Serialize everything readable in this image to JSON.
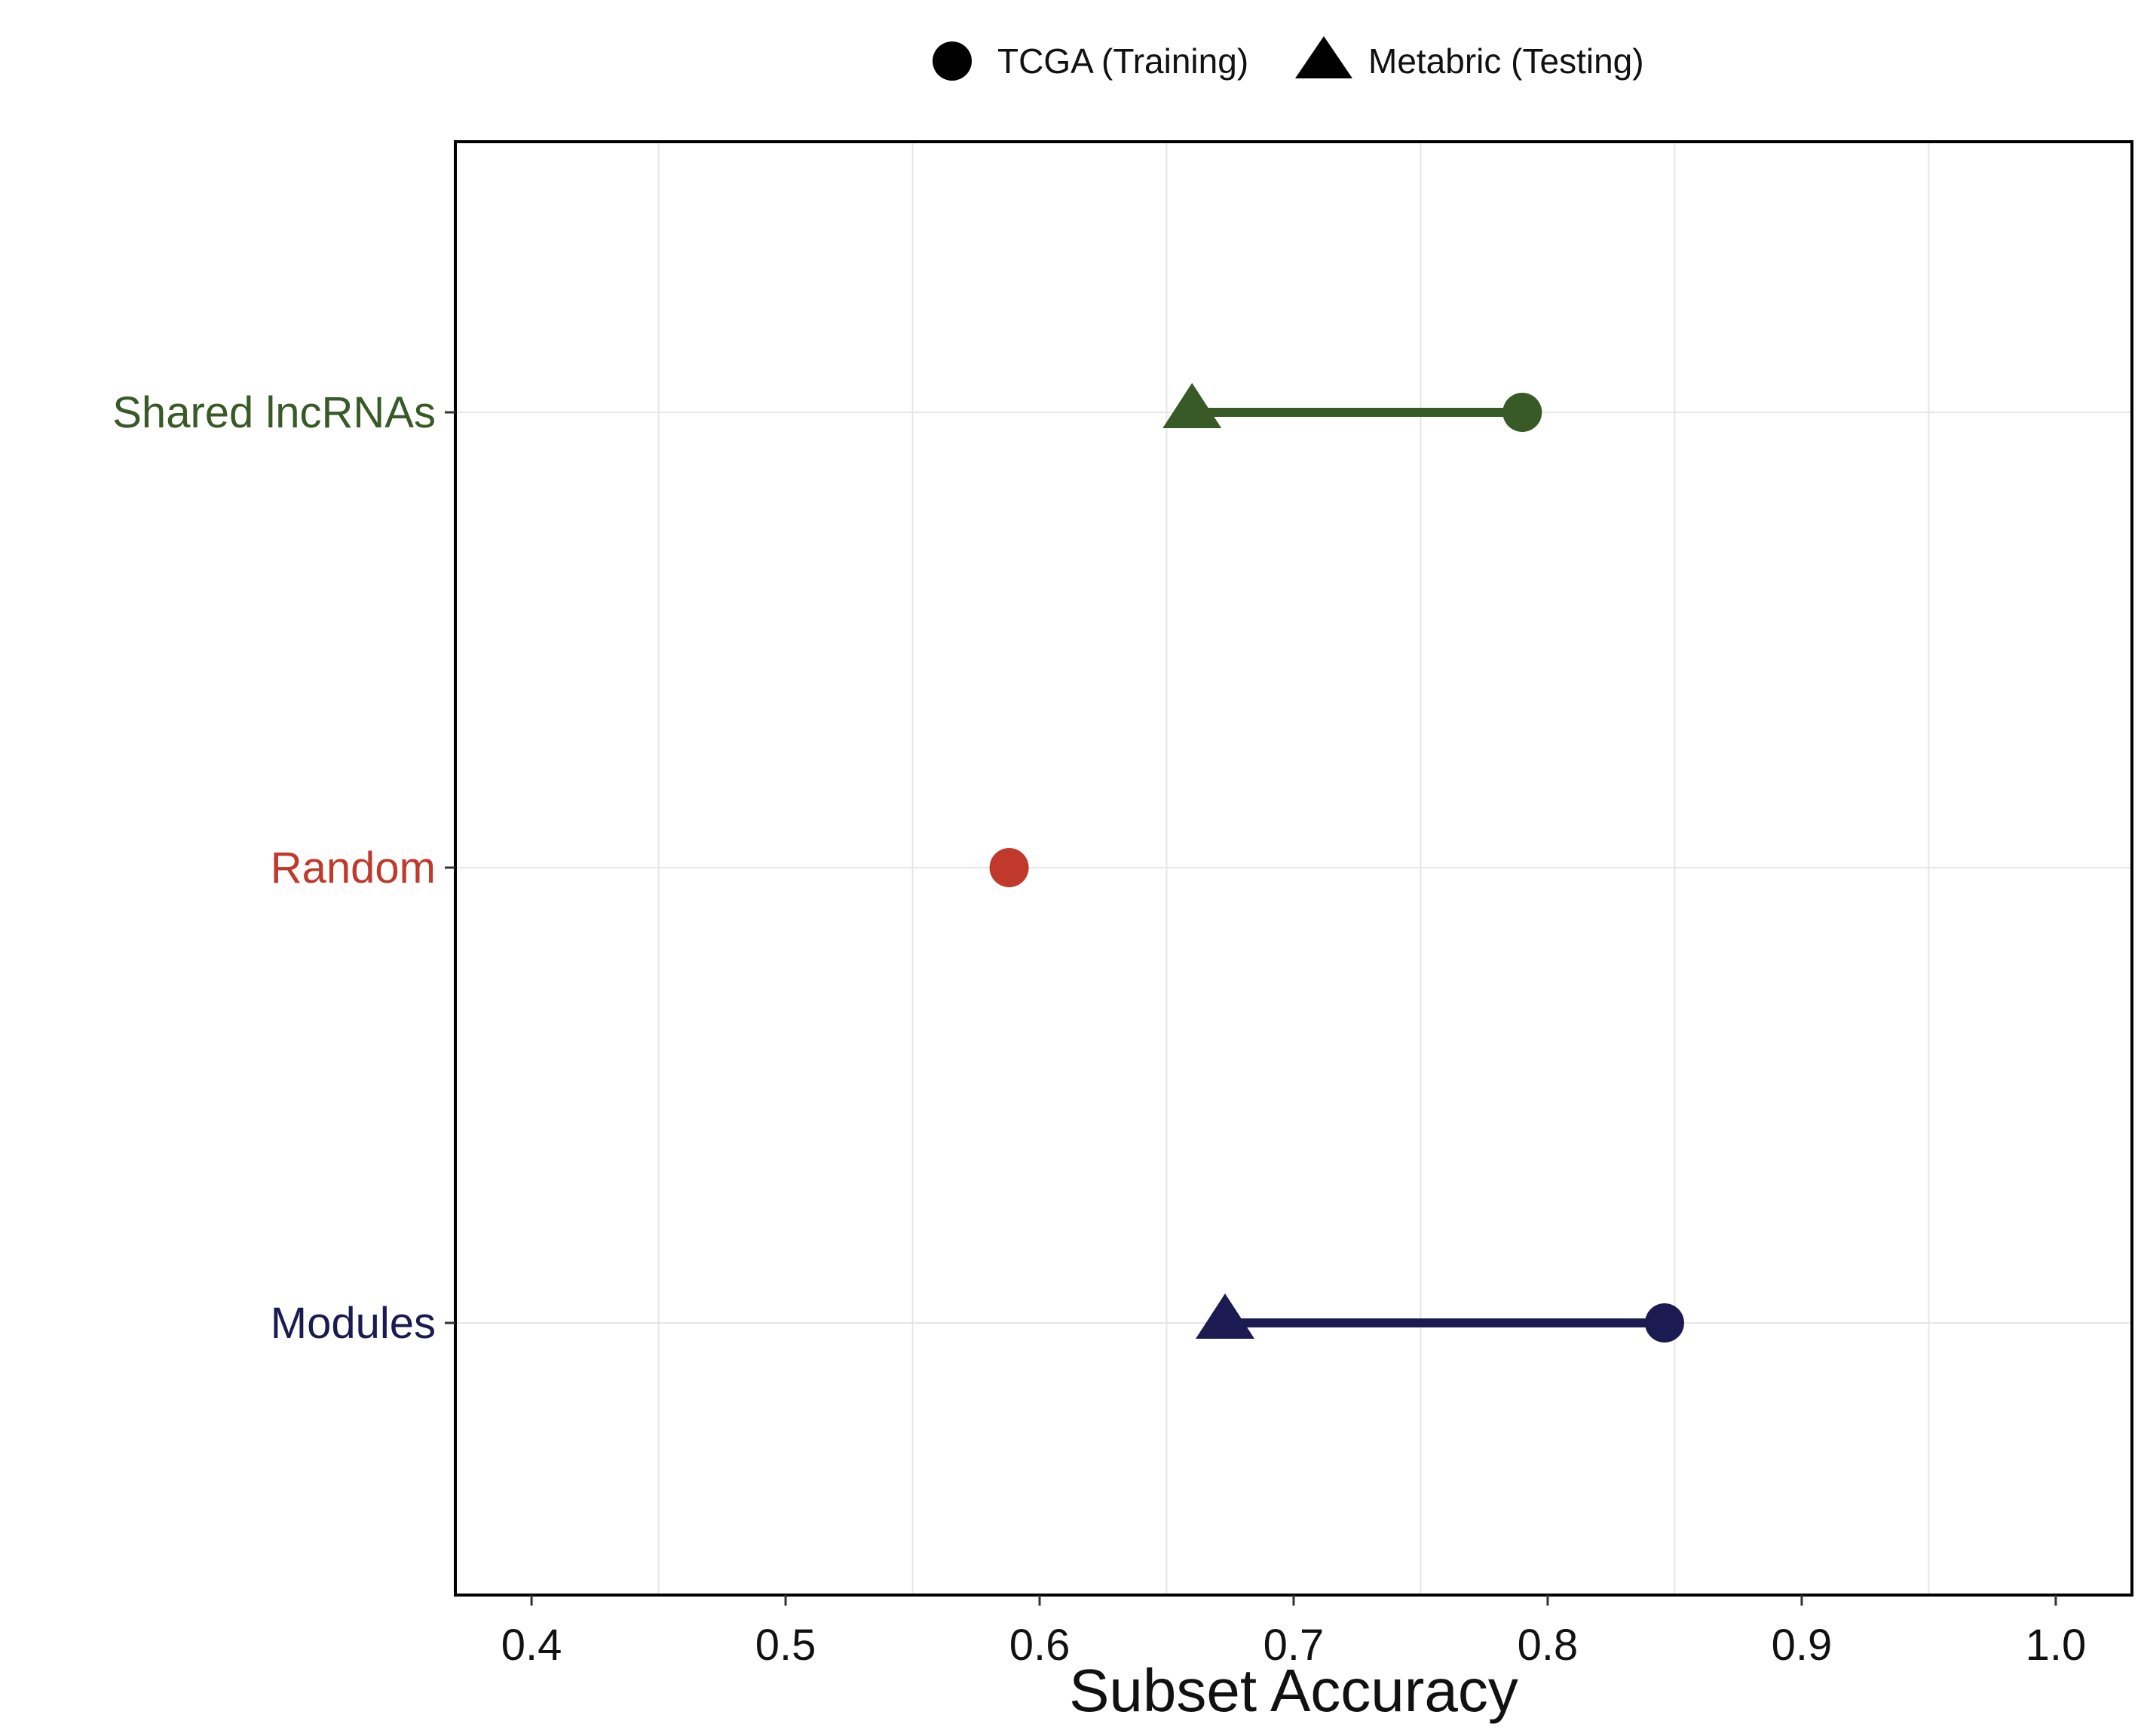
{
  "chart_data": {
    "type": "dumbbell",
    "xlabel": "Subset Accuracy",
    "xlim": [
      0.37,
      1.03
    ],
    "xticks": [
      "0.4",
      "0.5",
      "0.6",
      "0.7",
      "0.8",
      "0.9",
      "1.0"
    ],
    "x_minor_grid": [
      0.45,
      0.55,
      0.65,
      0.75,
      0.85,
      0.95
    ],
    "grid": true,
    "legend_position": "top",
    "legend": [
      {
        "label": "TCGA (Training)",
        "shape": "circle"
      },
      {
        "label": "Metabric (Testing)",
        "shape": "triangle"
      }
    ],
    "categories": [
      {
        "label": "Shared lncRNAs",
        "color": "#375a27",
        "tcga": 0.79,
        "metabric": 0.66
      },
      {
        "label": "Random",
        "color": "#c0392b",
        "tcga": 0.588,
        "metabric": null
      },
      {
        "label": "Modules",
        "color": "#1b1b52",
        "tcga": 0.846,
        "metabric": 0.673
      }
    ]
  }
}
